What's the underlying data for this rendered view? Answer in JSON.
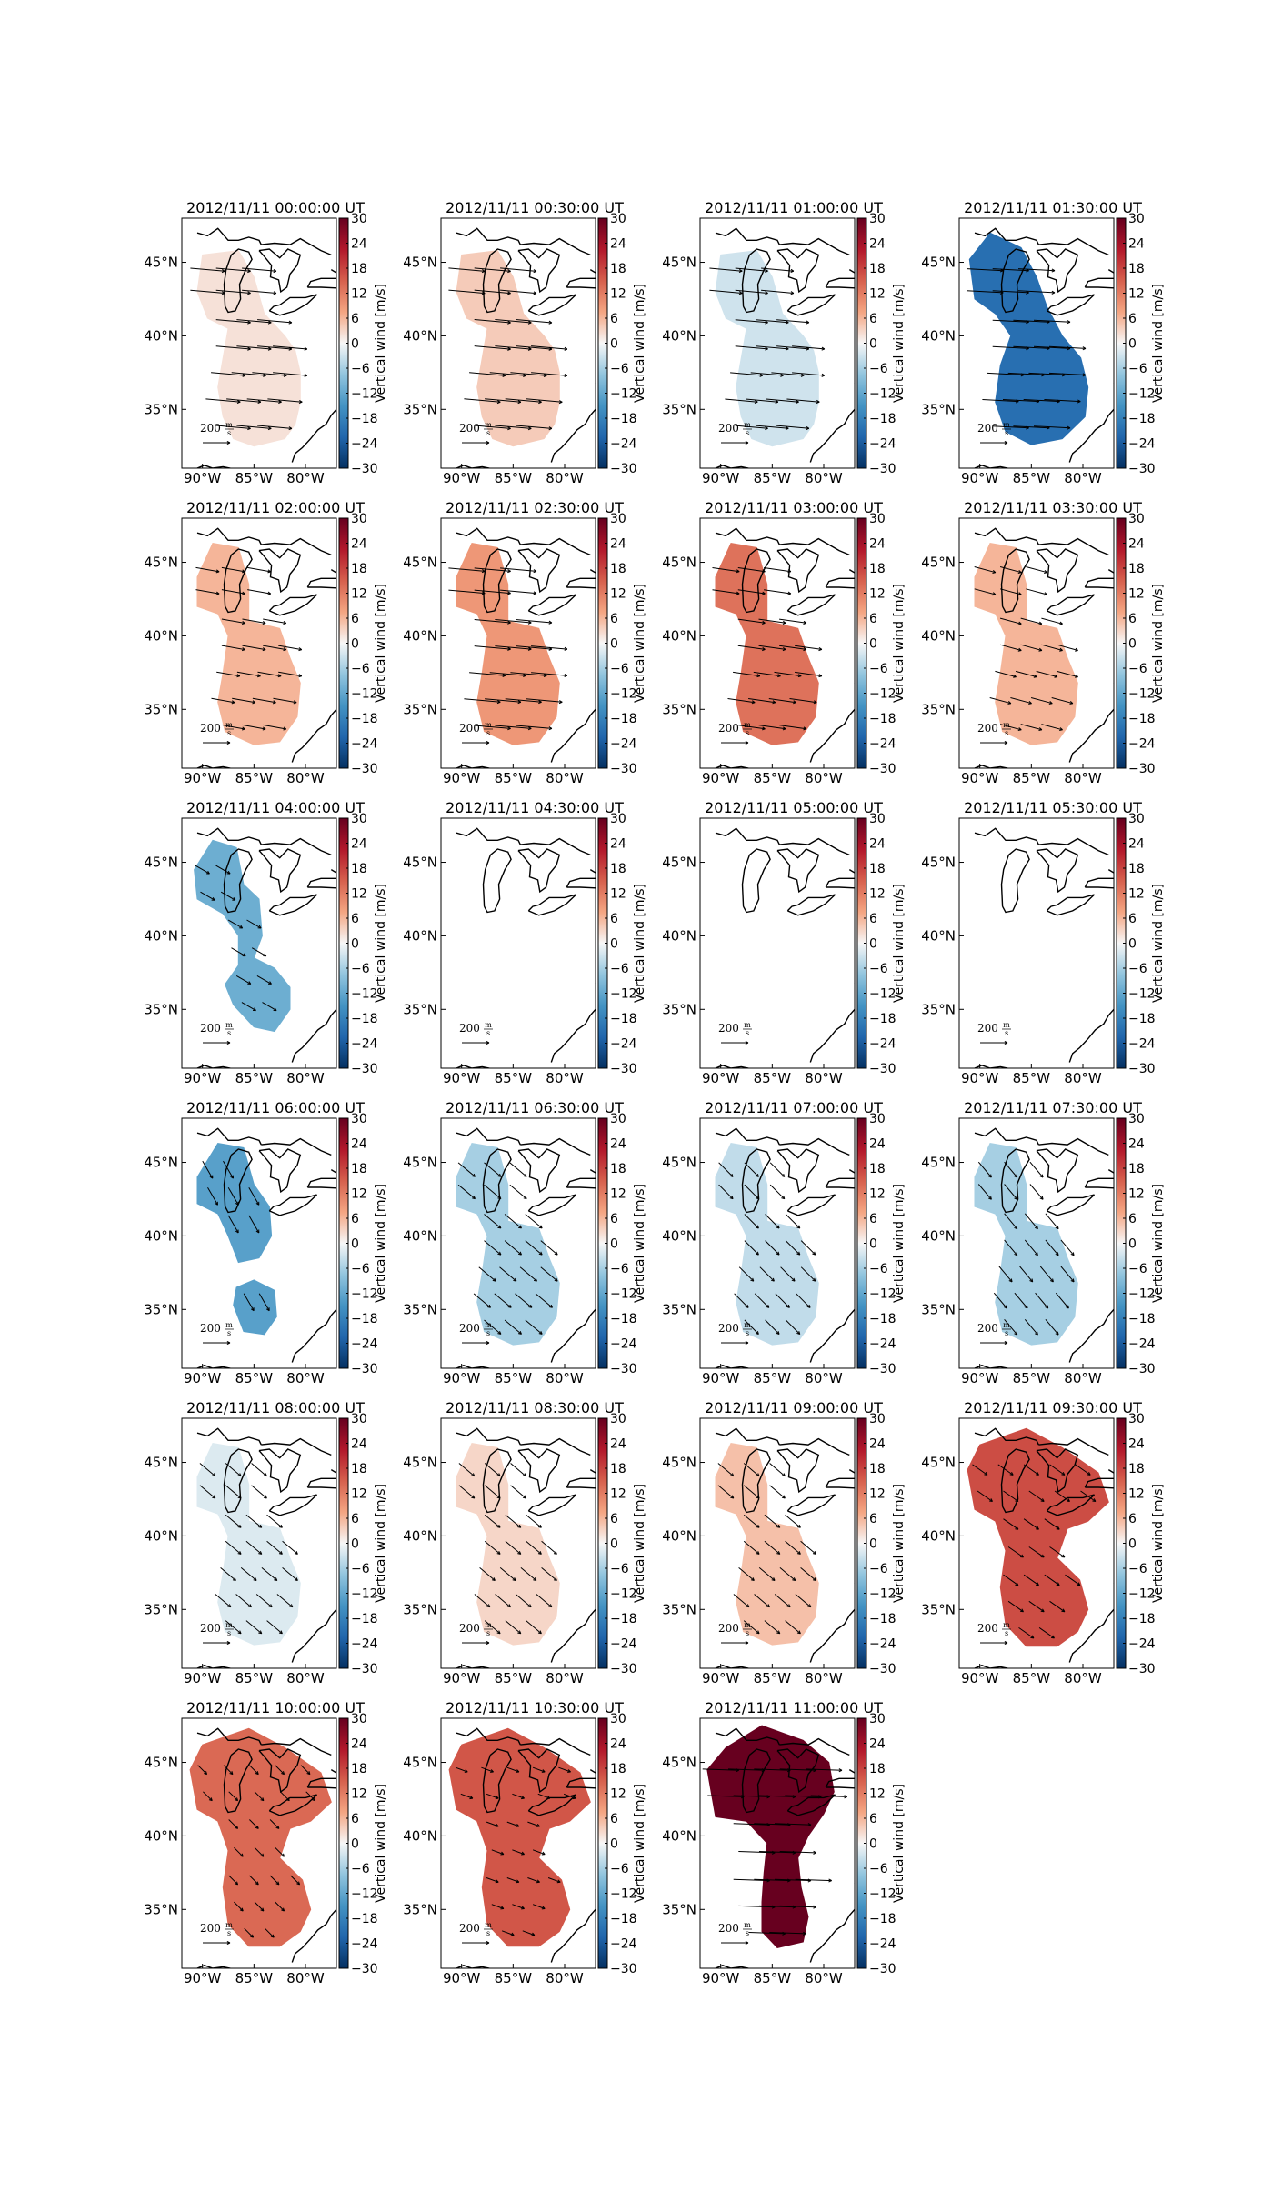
{
  "chart_data": {
    "type": "heatmap",
    "common": {
      "x_tick_labels": [
        "90°W",
        "85°W",
        "80°W"
      ],
      "y_tick_labels": [
        "45°N",
        "40°N",
        "35°N"
      ],
      "colorbar": {
        "label": "Vertical wind [m/s]",
        "range": [
          -30,
          30
        ],
        "ticks": [
          "30",
          "24",
          "18",
          "12",
          "6",
          "0",
          "−6",
          "−12",
          "−18",
          "−24",
          "−30"
        ]
      },
      "scale_label": "200",
      "scale_unit_num": "m",
      "scale_unit_den": "s"
    },
    "panels": [
      {
        "title": "2012/11/11 00:00:00 UT",
        "vertical_wind": 2,
        "shape": "A",
        "arrow_angle": 5,
        "arrow_len": 38
      },
      {
        "title": "2012/11/11 00:30:00 UT",
        "vertical_wind": 4,
        "shape": "A",
        "arrow_angle": 5,
        "arrow_len": 40
      },
      {
        "title": "2012/11/11 01:00:00 UT",
        "vertical_wind": -3,
        "shape": "A",
        "arrow_angle": 5,
        "arrow_len": 36
      },
      {
        "title": "2012/11/11 01:30:00 UT",
        "vertical_wind": -21,
        "shape": "B",
        "arrow_angle": 3,
        "arrow_len": 40
      },
      {
        "title": "2012/11/11 02:00:00 UT",
        "vertical_wind": 6,
        "shape": "C",
        "arrow_angle": 10,
        "arrow_len": 26
      },
      {
        "title": "2012/11/11 02:30:00 UT",
        "vertical_wind": 9,
        "shape": "C",
        "arrow_angle": 5,
        "arrow_len": 40
      },
      {
        "title": "2012/11/11 03:00:00 UT",
        "vertical_wind": 13,
        "shape": "C",
        "arrow_angle": 8,
        "arrow_len": 30
      },
      {
        "title": "2012/11/11 03:30:00 UT",
        "vertical_wind": 6,
        "shape": "C",
        "arrow_angle": 15,
        "arrow_len": 24
      },
      {
        "title": "2012/11/11 04:00:00 UT",
        "vertical_wind": -11,
        "shape": "D",
        "arrow_angle": 30,
        "arrow_len": 18
      },
      {
        "title": "2012/11/11 04:30:00 UT",
        "vertical_wind": null,
        "shape": "none",
        "arrow_angle": 0,
        "arrow_len": 0
      },
      {
        "title": "2012/11/11 05:00:00 UT",
        "vertical_wind": null,
        "shape": "none",
        "arrow_angle": 0,
        "arrow_len": 0
      },
      {
        "title": "2012/11/11 05:30:00 UT",
        "vertical_wind": null,
        "shape": "none",
        "arrow_angle": 0,
        "arrow_len": 0
      },
      {
        "title": "2012/11/11 06:00:00 UT",
        "vertical_wind": -13,
        "shape": "E",
        "arrow_angle": 60,
        "arrow_len": 22
      },
      {
        "title": "2012/11/11 06:30:00 UT",
        "vertical_wind": -6,
        "shape": "C",
        "arrow_angle": 40,
        "arrow_len": 24
      },
      {
        "title": "2012/11/11 07:00:00 UT",
        "vertical_wind": -4,
        "shape": "C",
        "arrow_angle": 45,
        "arrow_len": 22
      },
      {
        "title": "2012/11/11 07:30:00 UT",
        "vertical_wind": -6,
        "shape": "C",
        "arrow_angle": 50,
        "arrow_len": 22
      },
      {
        "title": "2012/11/11 08:00:00 UT",
        "vertical_wind": -2,
        "shape": "C",
        "arrow_angle": 40,
        "arrow_len": 22
      },
      {
        "title": "2012/11/11 08:30:00 UT",
        "vertical_wind": 3,
        "shape": "C",
        "arrow_angle": 40,
        "arrow_len": 22
      },
      {
        "title": "2012/11/11 09:00:00 UT",
        "vertical_wind": 5,
        "shape": "C",
        "arrow_angle": 40,
        "arrow_len": 22
      },
      {
        "title": "2012/11/11 09:30:00 UT",
        "vertical_wind": 17,
        "shape": "F",
        "arrow_angle": 35,
        "arrow_len": 20
      },
      {
        "title": "2012/11/11 10:00:00 UT",
        "vertical_wind": 14,
        "shape": "F",
        "arrow_angle": 45,
        "arrow_len": 14
      },
      {
        "title": "2012/11/11 10:30:00 UT",
        "vertical_wind": 16,
        "shape": "F",
        "arrow_angle": 20,
        "arrow_len": 14
      },
      {
        "title": "2012/11/11 11:00:00 UT",
        "vertical_wind": 30,
        "shape": "G",
        "arrow_angle": 2,
        "arrow_len": 40
      }
    ]
  }
}
